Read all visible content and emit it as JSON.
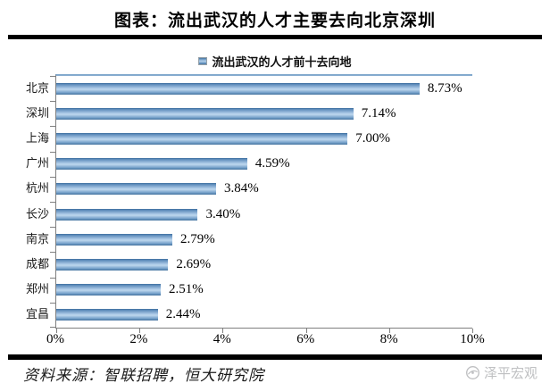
{
  "header": {
    "title": "图表：流出武汉的人才主要去向北京深圳"
  },
  "footer": {
    "source": "资料来源：智联招聘，恒大研究院",
    "watermark": "泽平宏观"
  },
  "colors": {
    "bar_edge": "#3d6e9d",
    "bar_center": "#bdd6ee",
    "plot_top_border": "#83aace",
    "axis": "#7f7f7f",
    "rule": "#000000",
    "watermark_gray": "#bfc0c2"
  },
  "chart_data": {
    "type": "bar",
    "orientation": "horizontal",
    "title": "流出武汉的人才前十去向地",
    "legend": [
      "流出武汉的人才前十去向地"
    ],
    "legend_position": "top",
    "categories": [
      "北京",
      "深圳",
      "上海",
      "广州",
      "杭州",
      "长沙",
      "南京",
      "成都",
      "郑州",
      "宜昌"
    ],
    "values": [
      8.73,
      7.14,
      7.0,
      4.59,
      3.84,
      3.4,
      2.79,
      2.69,
      2.51,
      2.44
    ],
    "value_labels": [
      "8.73%",
      "7.14%",
      "7.00%",
      "4.59%",
      "3.84%",
      "3.40%",
      "2.79%",
      "2.69%",
      "2.51%",
      "2.44%"
    ],
    "xlabel": "",
    "ylabel": "",
    "xlim": [
      0,
      10
    ],
    "xticks": [
      "0%",
      "2%",
      "4%",
      "6%",
      "8%",
      "10%"
    ],
    "grid": false
  }
}
